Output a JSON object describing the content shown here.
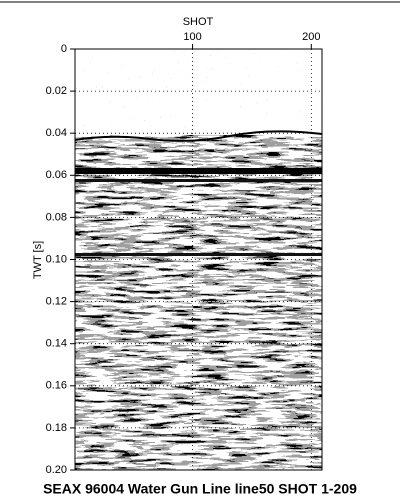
{
  "chart_data": {
    "type": "seismic-section",
    "title": "SEAX 96004 Water Gun Line line50 SHOT 1-209",
    "xlabel": "SHOT",
    "ylabel": "TWT [s]",
    "xlim": [
      1,
      209
    ],
    "xticks": [
      100,
      200
    ],
    "ylim": [
      0,
      0.2
    ],
    "yticks": [
      0,
      0.02,
      0.04,
      0.06,
      0.08,
      {
        "value": 0.1,
        "label": "0.10"
      },
      0.12,
      0.14,
      0.16,
      0.18,
      {
        "value": 0.2,
        "label": "0.20"
      }
    ],
    "grid": true
  }
}
